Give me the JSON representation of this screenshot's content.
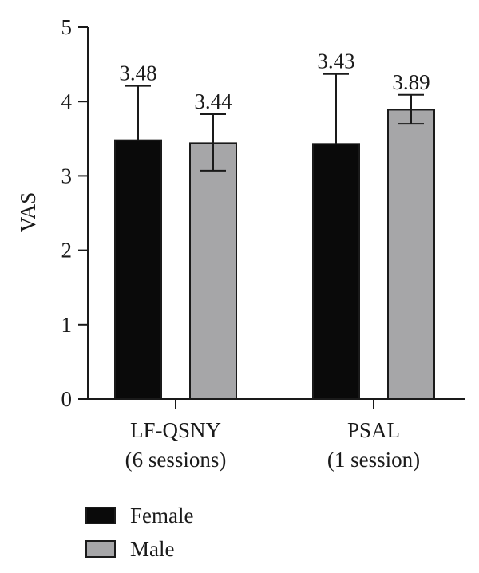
{
  "chart_data": {
    "type": "bar",
    "title": "",
    "xlabel": "",
    "ylabel": "VAS",
    "ylim": [
      0,
      5
    ],
    "yticks": [
      "0",
      "1",
      "2",
      "3",
      "4",
      "5"
    ],
    "categories": [
      {
        "line1": "LF-QSNY",
        "line2": "(6 sessions)"
      },
      {
        "line1": "PSAL",
        "line2": "(1 session)"
      }
    ],
    "series": [
      {
        "name": "Female",
        "color": "#0a0a0a",
        "values": [
          3.48,
          3.43
        ],
        "error_upper": [
          4.21,
          4.37
        ],
        "error_lower": [
          3.48,
          3.43
        ],
        "labels": [
          "3.48",
          "3.43"
        ]
      },
      {
        "name": "Male",
        "color": "#a6a6a8",
        "values": [
          3.44,
          3.89
        ],
        "error_upper": [
          3.83,
          4.09
        ],
        "error_lower": [
          3.07,
          3.7
        ],
        "labels": [
          "3.44",
          "3.89"
        ]
      }
    ],
    "grid": false,
    "legend": "bottom-left"
  }
}
